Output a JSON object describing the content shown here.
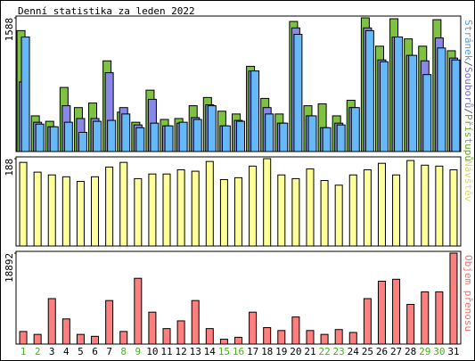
{
  "chart_data": {
    "type": "bar",
    "title": "Denní statistika za leden 2022",
    "categories": [
      "1",
      "2",
      "3",
      "4",
      "5",
      "6",
      "7",
      "8",
      "9",
      "10",
      "11",
      "12",
      "13",
      "14",
      "15",
      "16",
      "17",
      "18",
      "19",
      "20",
      "21",
      "22",
      "23",
      "24",
      "25",
      "26",
      "27",
      "28",
      "29",
      "30",
      "31"
    ],
    "category_colors": [
      "#4caf20",
      "#4caf20",
      "#000000",
      "#000000",
      "#000000",
      "#000000",
      "#000000",
      "#4caf20",
      "#4caf20",
      "#000000",
      "#000000",
      "#000000",
      "#000000",
      "#000000",
      "#4caf20",
      "#4caf20",
      "#000000",
      "#000000",
      "#000000",
      "#000000",
      "#000000",
      "#4caf20",
      "#4caf20",
      "#000000",
      "#000000",
      "#000000",
      "#000000",
      "#000000",
      "#4caf20",
      "#4caf20",
      "#000000"
    ],
    "legend_separator": "/",
    "panels": [
      {
        "ylim": [
          0,
          1588
        ],
        "yticks": [
          1588
        ],
        "series": [
          {
            "name": "Přístupů",
            "color": "#7fc241",
            "legend_color": "#66aa22",
            "values": [
              1436,
              424,
              359,
              761,
              522,
              576,
              1077,
              468,
              348,
              729,
              381,
              392,
              544,
              642,
              479,
              446,
              1012,
              631,
              446,
              1545,
              544,
              566,
              424,
              609,
              1588,
              1251,
              1577,
              1338,
              1251,
              1566,
              1197
            ]
          },
          {
            "name": "Souborů",
            "color": "#8888e8",
            "legend_color": "#7070d0",
            "values": [
              827,
              348,
              294,
              544,
              392,
              392,
              936,
              522,
              316,
              620,
              305,
              337,
              403,
              555,
              305,
              370,
              957,
              522,
              337,
              1468,
              424,
              283,
              337,
              522,
              1468,
              1088,
              1360,
              1142,
              1077,
              1349,
              1110
            ]
          },
          {
            "name": "Stránek",
            "color": "#66b8f8",
            "legend_color": "#4aa0e8",
            "values": [
              1360,
              326,
              294,
              348,
              228,
              359,
              370,
              446,
              283,
              337,
              305,
              348,
              381,
              544,
              305,
              359,
              957,
              446,
              337,
              1392,
              424,
              283,
              316,
              522,
              1436,
              1066,
              1360,
              1142,
              914,
              1230,
              1088
            ]
          }
        ]
      },
      {
        "ylim": [
          0,
          188
        ],
        "yticks": [
          188
        ],
        "series": [
          {
            "name": "Návštěv",
            "color": "#ffff99",
            "legend_color": "#e0d860",
            "values": [
              180,
              159,
              153,
              149,
              139,
              149,
              170,
              180,
              145,
              155,
              155,
              164,
              161,
              182,
              143,
              147,
              172,
              188,
              153,
              145,
              166,
              141,
              131,
              153,
              164,
              178,
              153,
              184,
              174,
              172,
              164
            ]
          }
        ]
      },
      {
        "ylim": [
          0,
          18892
        ],
        "yticks": [
          18892
        ],
        "series": [
          {
            "name": "Objem přenosu",
            "color": "#ff7f7f",
            "legend_color": "#f07070",
            "values": [
              2613,
              2010,
              9446,
              5225,
              2010,
              1608,
              9044,
              2613,
              13666,
              6632,
              3216,
              4823,
              9044,
              3216,
              1005,
              1407,
              6632,
              3417,
              2814,
              5627,
              2814,
              2010,
              3015,
              2412,
              9446,
              13063,
              13465,
              8240,
              10853,
              10853,
              18892
            ]
          }
        ]
      }
    ]
  }
}
